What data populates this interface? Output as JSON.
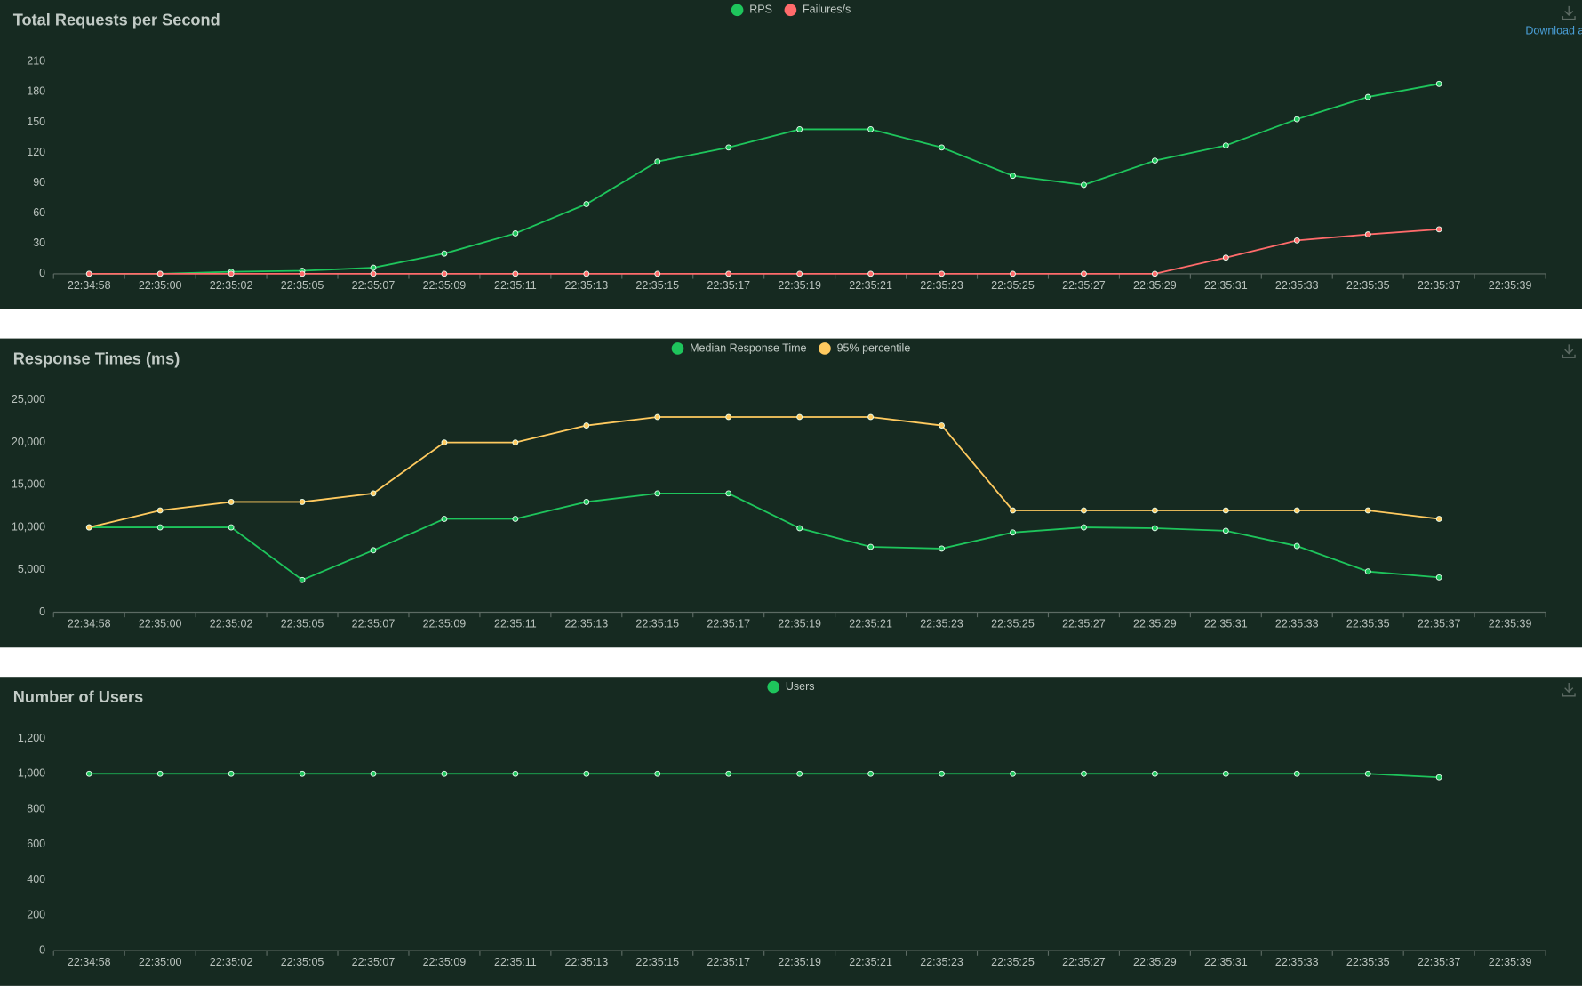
{
  "toolbar": {
    "download_label": "Download a"
  },
  "chart_data": [
    {
      "type": "line",
      "title": "Total Requests per Second",
      "categories": [
        "22:34:58",
        "22:35:00",
        "22:35:02",
        "22:35:05",
        "22:35:07",
        "22:35:09",
        "22:35:11",
        "22:35:13",
        "22:35:15",
        "22:35:17",
        "22:35:19",
        "22:35:21",
        "22:35:23",
        "22:35:25",
        "22:35:27",
        "22:35:29",
        "22:35:31",
        "22:35:33",
        "22:35:35",
        "22:35:37",
        "22:35:39"
      ],
      "series": [
        {
          "name": "RPS",
          "color": "#1ec55c",
          "values": [
            0,
            0,
            2,
            3,
            6,
            20,
            40,
            69,
            111,
            125,
            143,
            143,
            125,
            97,
            88,
            112,
            127,
            153,
            175,
            188,
            null
          ]
        },
        {
          "name": "Failures/s",
          "color": "#ff6b6b",
          "values": [
            0,
            0,
            0,
            0,
            0,
            0,
            0,
            0,
            0,
            0,
            0,
            0,
            0,
            0,
            0,
            0,
            16,
            33,
            39,
            44,
            null
          ]
        }
      ],
      "ylim": [
        0,
        210
      ],
      "yticks": [
        0,
        30,
        60,
        90,
        120,
        150,
        180,
        210
      ]
    },
    {
      "type": "line",
      "title": "Response Times (ms)",
      "categories": [
        "22:34:58",
        "22:35:00",
        "22:35:02",
        "22:35:05",
        "22:35:07",
        "22:35:09",
        "22:35:11",
        "22:35:13",
        "22:35:15",
        "22:35:17",
        "22:35:19",
        "22:35:21",
        "22:35:23",
        "22:35:25",
        "22:35:27",
        "22:35:29",
        "22:35:31",
        "22:35:33",
        "22:35:35",
        "22:35:37",
        "22:35:39"
      ],
      "series": [
        {
          "name": "Median Response Time",
          "color": "#1ec55c",
          "values": [
            10000,
            10000,
            10000,
            3800,
            7300,
            11000,
            11000,
            13000,
            14000,
            14000,
            9900,
            7700,
            7500,
            9400,
            10000,
            9900,
            9600,
            7800,
            4800,
            4100,
            null
          ]
        },
        {
          "name": "95% percentile",
          "color": "#ffca5f",
          "values": [
            10000,
            12000,
            13000,
            13000,
            14000,
            20000,
            20000,
            22000,
            23000,
            23000,
            23000,
            23000,
            22000,
            12000,
            12000,
            12000,
            12000,
            12000,
            12000,
            11000,
            null
          ]
        }
      ],
      "ylim": [
        0,
        25000
      ],
      "yticks": [
        0,
        {
          "value": 5000,
          "label": "5,000"
        },
        {
          "value": 10000,
          "label": "10,000"
        },
        {
          "value": 15000,
          "label": "15,000"
        },
        {
          "value": 20000,
          "label": "20,000"
        },
        {
          "value": 25000,
          "label": "25,000"
        }
      ]
    },
    {
      "type": "line",
      "title": "Number of Users",
      "categories": [
        "22:34:58",
        "22:35:00",
        "22:35:02",
        "22:35:05",
        "22:35:07",
        "22:35:09",
        "22:35:11",
        "22:35:13",
        "22:35:15",
        "22:35:17",
        "22:35:19",
        "22:35:21",
        "22:35:23",
        "22:35:25",
        "22:35:27",
        "22:35:29",
        "22:35:31",
        "22:35:33",
        "22:35:35",
        "22:35:37",
        "22:35:39"
      ],
      "series": [
        {
          "name": "Users",
          "color": "#1ec55c",
          "values": [
            1000,
            1000,
            1000,
            1000,
            1000,
            1000,
            1000,
            1000,
            1000,
            1000,
            1000,
            1000,
            1000,
            1000,
            1000,
            1000,
            1000,
            1000,
            1000,
            980,
            null
          ]
        }
      ],
      "ylim": [
        0,
        1200
      ],
      "yticks": [
        0,
        200,
        400,
        600,
        800,
        {
          "value": 1000,
          "label": "1,000"
        },
        {
          "value": 1200,
          "label": "1,200"
        }
      ]
    }
  ]
}
